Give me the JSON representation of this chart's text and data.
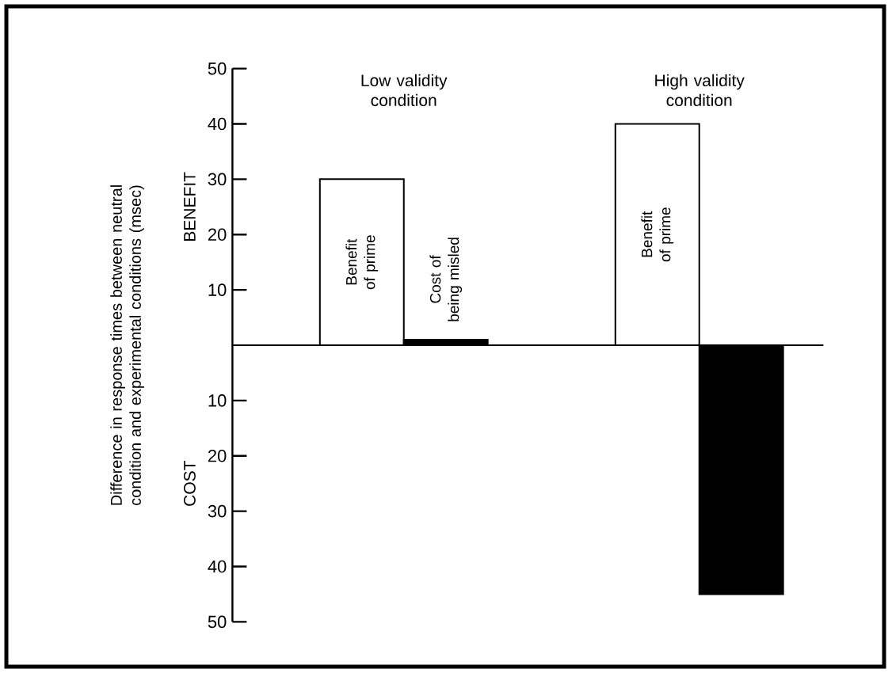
{
  "chart_data": {
    "type": "bar",
    "ylabel": "Difference in response times between neutral condition and experimental conditions (msec)",
    "categories": [
      "Low validity condition",
      "High validity condition"
    ],
    "series": [
      {
        "name": "Benefit of prime",
        "color": "#ffffff",
        "values": [
          30,
          40
        ]
      },
      {
        "name": "Cost of being misled",
        "color": "#000000",
        "values": [
          1,
          -45
        ]
      }
    ],
    "ylim": [
      -50,
      50
    ],
    "yticks": [
      {
        "value": -50,
        "label": "50"
      },
      {
        "value": -40,
        "label": "40"
      },
      {
        "value": -30,
        "label": "30"
      },
      {
        "value": -20,
        "label": "20"
      },
      {
        "value": -10,
        "label": "10"
      },
      {
        "value": 10,
        "label": "10"
      },
      {
        "value": 20,
        "label": "20"
      },
      {
        "value": 30,
        "label": "30"
      },
      {
        "value": 40,
        "label": "40"
      },
      {
        "value": 50,
        "label": "50"
      }
    ],
    "annotations": [
      "BENEFIT",
      "COST"
    ]
  }
}
